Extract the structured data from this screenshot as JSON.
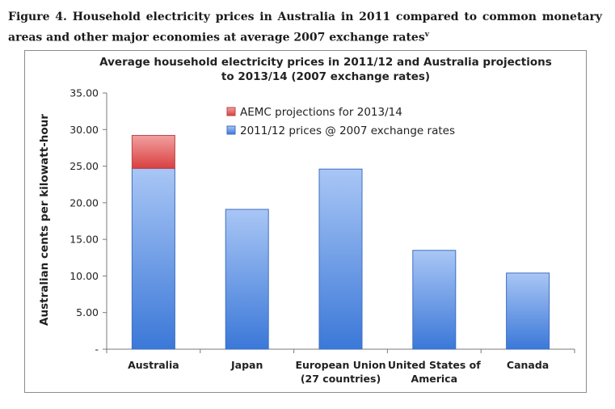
{
  "caption": {
    "text": "Figure 4. Household electricity prices in Australia in 2011 compared to common monetary areas and other major economies at average 2007 exchange rates",
    "superscript": "v"
  },
  "chart_data": {
    "type": "bar",
    "stacked": true,
    "title": [
      "Average household electricity prices in 2011/12 and Australia projections",
      "to 2013/14 (2007 exchange rates)"
    ],
    "xlabel": "",
    "ylabel": "Australian cents per kilowatt-hour",
    "ylim": [
      0,
      35
    ],
    "y_ticks": [
      "-",
      "5.00",
      "10.00",
      "15.00",
      "20.00",
      "25.00",
      "30.00",
      "35.00"
    ],
    "y_tick_values": [
      0,
      5,
      10,
      15,
      20,
      25,
      30,
      35
    ],
    "categories": [
      [
        "Australia"
      ],
      [
        "Japan"
      ],
      [
        "European Union",
        "(27 countries)"
      ],
      [
        "United States of",
        "America"
      ],
      [
        "Canada"
      ]
    ],
    "series": [
      {
        "name": "2011/12 prices @ 2007 exchange rates",
        "values": [
          24.7,
          19.1,
          24.6,
          13.5,
          10.4
        ],
        "color": "#6f9ee8"
      },
      {
        "name": "AEMC projections for 2013/14",
        "values": [
          4.5,
          0,
          0,
          0,
          0
        ],
        "color": "#e35e5e"
      }
    ],
    "legend_order": [
      1,
      0
    ],
    "legend_position": "top-center",
    "grid": false
  }
}
